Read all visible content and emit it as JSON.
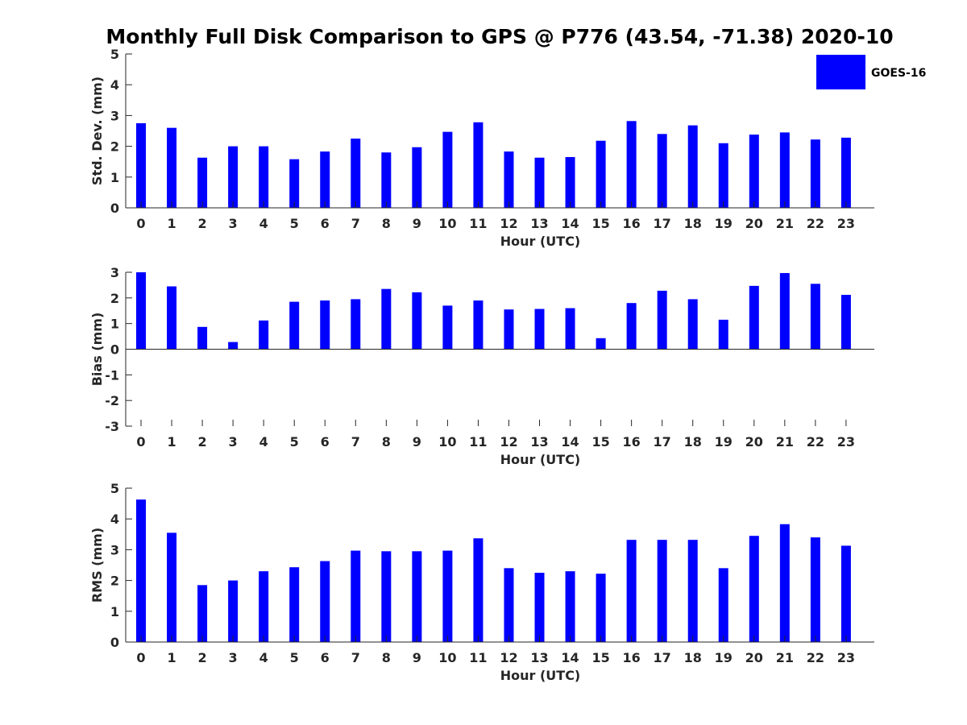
{
  "colors": {
    "bar": "#0000ff",
    "axis": "#262626",
    "background": "#ffffff"
  },
  "legend_label": "GOES-16",
  "chart_data": {
    "title": "Monthly Full Disk Comparison to GPS @ P776 (43.54, -71.38) 2020-10",
    "type": "bar",
    "x": [
      0,
      1,
      2,
      3,
      4,
      5,
      6,
      7,
      8,
      9,
      10,
      11,
      12,
      13,
      14,
      15,
      16,
      17,
      18,
      19,
      20,
      21,
      22,
      23
    ],
    "xlabel": "Hour (UTC)",
    "legend": {
      "entries": [
        "GOES-16"
      ],
      "placement": "top-right"
    },
    "panels": [
      {
        "name": "std-dev",
        "ylabel": "Std. Dev. (mm)",
        "ylim": [
          0,
          5
        ],
        "yticks": [
          0,
          1,
          2,
          3,
          4,
          5
        ],
        "series": [
          {
            "name": "GOES-16",
            "values": [
              2.75,
              2.6,
              1.63,
              2.0,
              2.0,
              1.58,
              1.83,
              2.25,
              1.8,
              1.97,
              2.47,
              2.78,
              1.83,
              1.63,
              1.65,
              2.18,
              2.82,
              2.4,
              2.68,
              2.1,
              2.38,
              2.45,
              2.22,
              2.28
            ]
          }
        ]
      },
      {
        "name": "bias",
        "ylabel": "Bias (mm)",
        "ylim": [
          -3,
          3
        ],
        "yticks": [
          -3,
          -2,
          -1,
          0,
          1,
          2,
          3
        ],
        "series": [
          {
            "name": "GOES-16",
            "values": [
              3.0,
              2.45,
              0.87,
              0.28,
              1.12,
              1.85,
              1.9,
              1.95,
              2.35,
              2.22,
              1.7,
              1.9,
              1.55,
              1.57,
              1.6,
              0.43,
              1.8,
              2.28,
              1.95,
              1.15,
              2.47,
              2.97,
              2.55,
              2.12
            ]
          }
        ]
      },
      {
        "name": "rms",
        "ylabel": "RMS (mm)",
        "ylim": [
          0,
          5
        ],
        "yticks": [
          0,
          1,
          2,
          3,
          4,
          5
        ],
        "series": [
          {
            "name": "GOES-16",
            "values": [
              4.63,
              3.55,
              1.85,
              2.0,
              2.3,
              2.43,
              2.63,
              2.97,
              2.95,
              2.95,
              2.97,
              3.37,
              2.4,
              2.25,
              2.3,
              2.22,
              3.32,
              3.32,
              3.32,
              2.4,
              3.45,
              3.83,
              3.4,
              3.13
            ]
          }
        ]
      }
    ]
  }
}
